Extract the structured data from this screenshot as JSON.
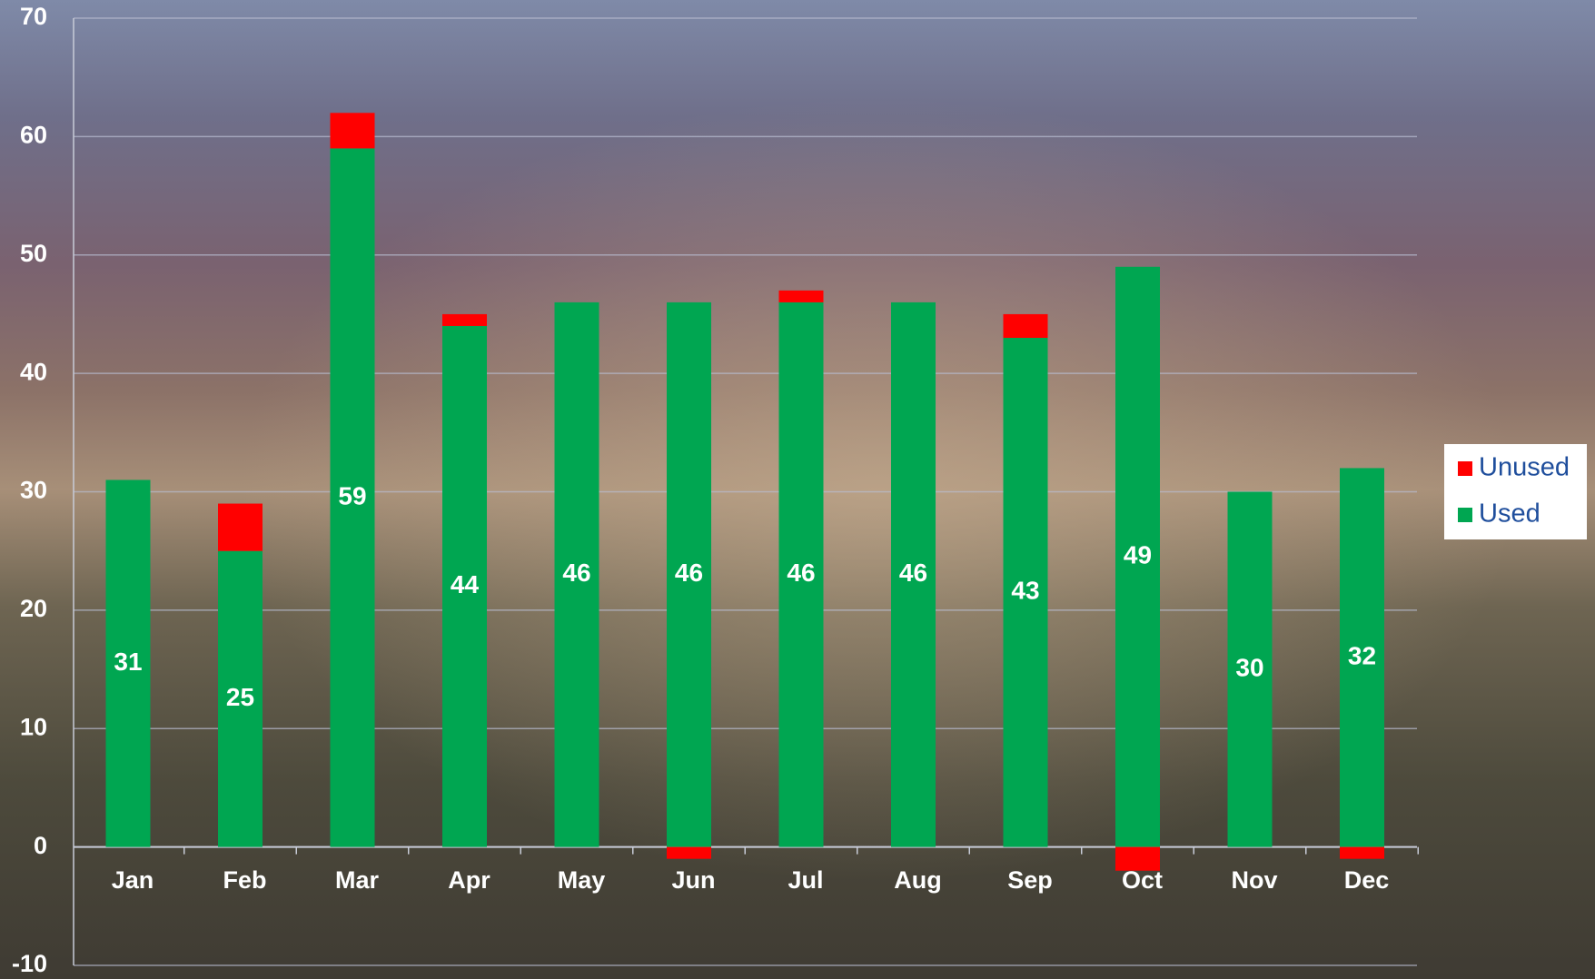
{
  "chart_data": {
    "type": "stacked-bar",
    "categories": [
      "Jan",
      "Feb",
      "Mar",
      "Apr",
      "May",
      "Jun",
      "Jul",
      "Aug",
      "Sep",
      "Oct",
      "Nov",
      "Dec"
    ],
    "series": [
      {
        "name": "Used",
        "color": "#00a651",
        "values": [
          31,
          25,
          59,
          44,
          46,
          46,
          46,
          46,
          43,
          49,
          30,
          32
        ],
        "data_labels": true
      },
      {
        "name": "Unused",
        "color": "#ff0000",
        "values": [
          0,
          4,
          3,
          1,
          0,
          -1,
          1,
          0,
          2,
          -2,
          0,
          -1
        ]
      }
    ],
    "ylim": [
      -10,
      70
    ],
    "yticks": [
      -10,
      0,
      10,
      20,
      30,
      40,
      50,
      60,
      70
    ],
    "grid": true,
    "legend": "right"
  }
}
